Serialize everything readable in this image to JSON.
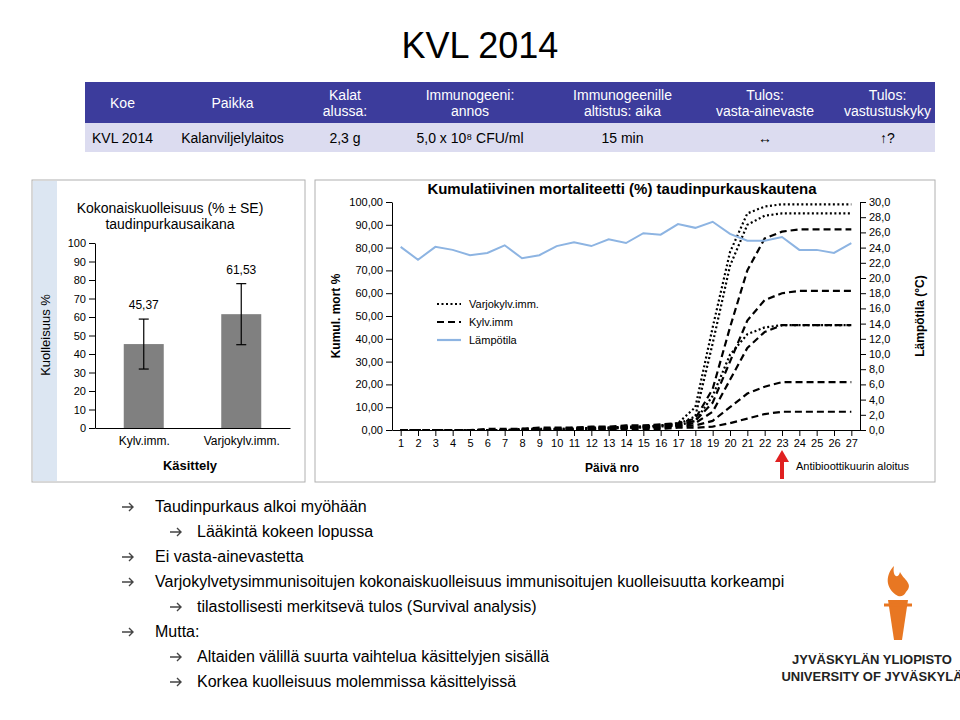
{
  "title": "KVL 2014",
  "table": {
    "header": [
      [
        "Koe"
      ],
      [
        "Paikka"
      ],
      [
        "Kalat",
        "alussa:"
      ],
      [
        "Immunogeeni:",
        "annos"
      ],
      [
        "Immunogeenille",
        "altistus: aika"
      ],
      [
        "Tulos:",
        "vasta-ainevaste"
      ],
      [
        "Tulos:",
        "vastustuskyky"
      ]
    ],
    "rows": [
      [
        "KVL 2014",
        "Kalanviljelylaitos",
        "2,3 g",
        "5,0 x 10⁸ CFU/ml",
        "15 min",
        "↔",
        "↑?"
      ]
    ]
  },
  "chart_data": [
    {
      "type": "bar",
      "title": [
        "Kokonaiskuolleisuus (% ± SE)",
        "taudinpurkausaikana"
      ],
      "categories": [
        "Kylv.imm.",
        "Varjokylv.imm."
      ],
      "values": [
        45.37,
        61.53
      ],
      "value_labels": [
        "45,37",
        "61,53"
      ],
      "data_labels": true,
      "errors": [
        13.5,
        16.5
      ],
      "color": "#808080",
      "ylim": [
        0,
        100
      ],
      "yticks": [
        0,
        10,
        20,
        30,
        40,
        50,
        60,
        70,
        80,
        90,
        100
      ],
      "y_label": "Kuolleisuus %",
      "x_label": "Käsittely"
    },
    {
      "type": "line",
      "title": "Kumulatiivinen mortaliteetti (%) taudinpurkauskautena",
      "x": [
        1,
        2,
        3,
        4,
        5,
        6,
        7,
        8,
        9,
        10,
        11,
        12,
        13,
        14,
        15,
        16,
        17,
        18,
        19,
        20,
        21,
        22,
        23,
        24,
        25,
        26,
        27
      ],
      "xlim": [
        0.5,
        27.5
      ],
      "xticks": [
        1,
        2,
        3,
        4,
        5,
        6,
        7,
        8,
        9,
        10,
        11,
        12,
        13,
        14,
        15,
        16,
        17,
        18,
        19,
        20,
        21,
        22,
        23,
        24,
        25,
        26,
        27
      ],
      "ylim": [
        0,
        100
      ],
      "yticks": [
        {
          "value": 0,
          "label": "0,00"
        },
        {
          "value": 10,
          "label": "10,00"
        },
        {
          "value": 20,
          "label": "20,00"
        },
        {
          "value": 30,
          "label": "30,00"
        },
        {
          "value": 40,
          "label": "40,00"
        },
        {
          "value": 50,
          "label": "50,00"
        },
        {
          "value": 60,
          "label": "60,00"
        },
        {
          "value": 70,
          "label": "70,00"
        },
        {
          "value": 80,
          "label": "80,00"
        },
        {
          "value": 90,
          "label": "90,00"
        },
        {
          "value": 100,
          "label": "100,00"
        }
      ],
      "y2lim": [
        0,
        30
      ],
      "y2ticks": [
        {
          "value": 0,
          "label": "0,0"
        },
        {
          "value": 2,
          "label": "2,0"
        },
        {
          "value": 4,
          "label": "4,0"
        },
        {
          "value": 6,
          "label": "6,0"
        },
        {
          "value": 8,
          "label": "8,0"
        },
        {
          "value": 10,
          "label": "10,0"
        },
        {
          "value": 12,
          "label": "12,0"
        },
        {
          "value": 14,
          "label": "14,0"
        },
        {
          "value": 16,
          "label": "16,0"
        },
        {
          "value": 18,
          "label": "18,0"
        },
        {
          "value": 20,
          "label": "20,0"
        },
        {
          "value": 22,
          "label": "22,0"
        },
        {
          "value": 24,
          "label": "24,0"
        },
        {
          "value": 26,
          "label": "26,0"
        },
        {
          "value": 28,
          "label": "28,0"
        },
        {
          "value": 30,
          "label": "30,0"
        }
      ],
      "y_label": "Kumul. mort %",
      "y2_label": "Lämpötila (°C)",
      "x_label": "Päivä nro",
      "legend": "left",
      "annotation": {
        "text": "Antibioottikuurin aloitus",
        "x": 23
      },
      "series": [
        {
          "name": "Varjokylv.imm.",
          "color": "#000000",
          "line_style": "dotted",
          "values": [
            0,
            0,
            0,
            0,
            0,
            0,
            0,
            0.5,
            0.5,
            0.5,
            0.5,
            1,
            1,
            1.5,
            1.5,
            2,
            3,
            10,
            45,
            78,
            95,
            98,
            99,
            99,
            99,
            99,
            99
          ]
        },
        {
          "name": "Varjokylv.imm.",
          "color": "#000000",
          "line_style": "dotted",
          "values": [
            0,
            0,
            0,
            0,
            0,
            0,
            0,
            0,
            0,
            0.5,
            0.5,
            0.5,
            1,
            1,
            1.5,
            2,
            2.5,
            6,
            38,
            72,
            90,
            94,
            95,
            95,
            95,
            95,
            95
          ]
        },
        {
          "name": "Varjokylv.imm.",
          "color": "#000000",
          "line_style": "dotted",
          "values": [
            0,
            0,
            0,
            0,
            0,
            0,
            0,
            0,
            0,
            0,
            0,
            0.5,
            0.5,
            1,
            1,
            1.5,
            2,
            4,
            15,
            33,
            42,
            45,
            46,
            46,
            46,
            46,
            46
          ]
        },
        {
          "name": "Kylv.imm",
          "color": "#000000",
          "line_style": "dashed",
          "values": [
            0,
            0,
            0,
            0,
            0,
            0.5,
            0.5,
            0.5,
            1,
            1,
            1,
            1.5,
            1.5,
            2,
            2,
            2.5,
            3,
            5,
            18,
            45,
            70,
            84,
            87,
            88,
            88,
            88,
            88
          ]
        },
        {
          "name": "Kylv.imm",
          "color": "#000000",
          "line_style": "dashed",
          "values": [
            0,
            0,
            0,
            0,
            0,
            0,
            0,
            0.5,
            0.5,
            0.5,
            1,
            1,
            1,
            1.5,
            1.5,
            2,
            2.5,
            4,
            12,
            30,
            48,
            57,
            60,
            61,
            61,
            61,
            61
          ]
        },
        {
          "name": "Kylv.imm",
          "color": "#000000",
          "line_style": "dashed",
          "values": [
            0,
            0,
            0,
            0,
            0,
            0,
            0,
            0,
            0.5,
            0.5,
            0.5,
            1,
            1,
            1,
            1.5,
            1.5,
            2,
            3,
            8,
            22,
            36,
            43,
            46,
            46,
            46,
            46,
            46
          ]
        },
        {
          "name": "Kylv.imm",
          "color": "#000000",
          "line_style": "dashed",
          "values": [
            0,
            0,
            0,
            0,
            0,
            0,
            0,
            0,
            0,
            0,
            0.5,
            0.5,
            0.5,
            1,
            1,
            1,
            1.5,
            2,
            4,
            10,
            16,
            19,
            21,
            21,
            21,
            21,
            21
          ]
        },
        {
          "name": "Kylv.imm",
          "color": "#000000",
          "line_style": "dashed",
          "values": [
            0,
            0,
            0,
            0,
            0,
            0,
            0,
            0,
            0,
            0,
            0,
            0,
            0,
            0.5,
            0.5,
            0.5,
            1,
            1,
            1.5,
            3,
            5,
            7,
            8,
            8,
            8,
            8,
            8
          ]
        },
        {
          "name": "Lämpötila",
          "color": "#8db4e2",
          "line_style": "solid",
          "axis": "y2",
          "values": [
            24.1,
            22.4,
            24.1,
            23.7,
            23.0,
            23.3,
            24.3,
            22.6,
            23.0,
            24.2,
            24.7,
            24.2,
            25.1,
            24.6,
            25.9,
            25.7,
            27.1,
            26.6,
            27.4,
            25.8,
            24.9,
            24.9,
            25.4,
            23.7,
            23.7,
            23.3,
            24.6
          ]
        }
      ]
    }
  ],
  "bullets": [
    {
      "text": "Taudinpurkaus alkoi myöhään",
      "sub": [
        "Lääkintä kokeen lopussa"
      ]
    },
    {
      "text": "Ei vasta-ainevastetta"
    },
    {
      "text": "Varjokylvetysimmunisoitujen kokonaiskuolleisuus immunisoitujen kuolleisuutta korkeampi",
      "sub": [
        "tilastollisesti merkitsevä tulos (Survival analysis)"
      ]
    },
    {
      "text": "Mutta:",
      "sub": [
        "Altaiden välillä suurta vaihtelua käsittelyjen sisällä",
        "Korkea kuolleisuus molemmissa käsittelyissä"
      ]
    }
  ],
  "logo": [
    "JYVÄSKYLÄN YLIOPISTO",
    "UNIVERSITY OF JYVÄSKYLÄ"
  ]
}
